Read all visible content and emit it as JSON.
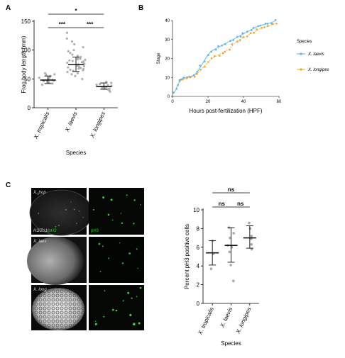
{
  "panels": {
    "a": "A",
    "b": "B",
    "c": "C"
  },
  "chart_data": [
    {
      "type": "scatter",
      "panel": "A",
      "ylabel": "Frog  body length (mm)",
      "xlabel": "Species",
      "ylim": [
        0,
        150
      ],
      "yticks": [
        "0",
        "50",
        "100",
        "150"
      ],
      "categories": [
        "X. tropicalis",
        "X. laevis",
        "X. longipes"
      ],
      "summary": [
        {
          "center": 48,
          "low": 42,
          "high": 55
        },
        {
          "center": 75,
          "low": 63,
          "high": 88
        },
        {
          "center": 37,
          "low": 32,
          "high": 43
        }
      ],
      "points": [
        [
          40,
          42,
          44,
          45,
          46,
          47,
          48,
          49,
          50,
          51,
          52,
          53,
          55,
          57,
          58,
          60
        ],
        [
          50,
          55,
          58,
          60,
          62,
          64,
          65,
          66,
          67,
          68,
          69,
          70,
          71,
          72,
          73,
          74,
          75,
          75,
          76,
          77,
          78,
          79,
          80,
          81,
          82,
          83,
          84,
          85,
          86,
          88,
          90,
          92,
          95,
          98,
          100,
          105,
          110,
          115,
          120,
          130
        ],
        [
          28,
          30,
          32,
          33,
          34,
          35,
          36,
          37,
          38,
          39,
          40,
          41,
          43,
          45
        ]
      ],
      "significance": [
        {
          "pair": [
            0,
            2
          ],
          "label": "*"
        },
        {
          "pair": [
            0,
            1
          ],
          "label": "***"
        },
        {
          "pair": [
            1,
            2
          ],
          "label": "***"
        }
      ]
    },
    {
      "type": "line",
      "panel": "B",
      "xlabel": "Hours post-fertilization (HPF)",
      "ylabel": "Stage",
      "xlim": [
        0,
        60
      ],
      "ylim": [
        0,
        40
      ],
      "xticks": [
        "0",
        "20",
        "40",
        "60"
      ],
      "yticks": [
        "0",
        "10",
        "20",
        "30",
        "40"
      ],
      "legend_title": "Species",
      "legend_position": "right",
      "series": [
        {
          "name": "X. laevis",
          "color": "#5ab4e6",
          "points": [
            [
              1,
              2
            ],
            [
              2,
              4
            ],
            [
              3,
              6
            ],
            [
              4,
              8
            ],
            [
              5,
              9
            ],
            [
              6,
              10
            ],
            [
              8,
              10
            ],
            [
              10,
              10.5
            ],
            [
              12,
              11
            ],
            [
              14,
              13
            ],
            [
              16,
              16
            ],
            [
              18,
              19
            ],
            [
              20,
              22
            ],
            [
              22,
              24
            ],
            [
              24,
              25
            ],
            [
              26,
              26
            ],
            [
              28,
              27
            ],
            [
              30,
              28
            ],
            [
              32,
              29
            ],
            [
              34,
              30
            ],
            [
              36,
              31
            ],
            [
              38,
              32
            ],
            [
              40,
              33
            ],
            [
              42,
              34
            ],
            [
              44,
              35
            ],
            [
              46,
              36
            ],
            [
              48,
              37
            ],
            [
              50,
              37.5
            ],
            [
              52,
              38
            ],
            [
              54,
              38.5
            ],
            [
              56,
              39
            ],
            [
              58,
              40
            ]
          ]
        },
        {
          "name": "X. longipes",
          "color": "#f0a52a",
          "points": [
            [
              4,
              8
            ],
            [
              6,
              9
            ],
            [
              8,
              9.5
            ],
            [
              10,
              10
            ],
            [
              12,
              10.5
            ],
            [
              14,
              12
            ],
            [
              16,
              14
            ],
            [
              18,
              16
            ],
            [
              20,
              18
            ],
            [
              22,
              20
            ],
            [
              24,
              21
            ],
            [
              26,
              22
            ],
            [
              28,
              23
            ],
            [
              30,
              24
            ],
            [
              32,
              25
            ],
            [
              34,
              27
            ],
            [
              36,
              29
            ],
            [
              38,
              30
            ],
            [
              40,
              31
            ],
            [
              42,
              32
            ],
            [
              44,
              33
            ],
            [
              46,
              34
            ],
            [
              48,
              35
            ],
            [
              50,
              36
            ],
            [
              52,
              36.5
            ],
            [
              54,
              37
            ],
            [
              56,
              38
            ],
            [
              58,
              38.5
            ]
          ]
        }
      ]
    },
    {
      "type": "scatter",
      "panel": "C",
      "ylabel": "Percent pH3 positive cells",
      "xlabel": "Species",
      "ylim": [
        0,
        10
      ],
      "yticks": [
        "0",
        "2",
        "4",
        "6",
        "8",
        "10"
      ],
      "categories": [
        "X. tropicalis",
        "X. laevis",
        "X. longipes"
      ],
      "summary": [
        {
          "center": 5.4,
          "low": 4.1,
          "high": 6.7
        },
        {
          "center": 6.2,
          "low": 4.4,
          "high": 8.1
        },
        {
          "center": 7.0,
          "low": 5.9,
          "high": 8.3
        }
      ],
      "points": [
        [
          3.7,
          5.3,
          6.7
        ],
        [
          2.4,
          4.1,
          5.5,
          6.0,
          6.2,
          7.0,
          7.5,
          8.1
        ],
        [
          5.8,
          6.3,
          6.9,
          7.2,
          8.0,
          8.6
        ]
      ],
      "significance": [
        {
          "pair": [
            0,
            2
          ],
          "label": "ns"
        },
        {
          "pair": [
            0,
            1
          ],
          "label": "ns"
        },
        {
          "pair": [
            1,
            2
          ],
          "label": "ns"
        }
      ]
    }
  ],
  "micrographs": {
    "row_labels": [
      "X. trop",
      "X. laev",
      "X. long"
    ],
    "merge_label": "H3/Zo1/",
    "merge_label_green": "pH3",
    "green_label": "pH3"
  }
}
